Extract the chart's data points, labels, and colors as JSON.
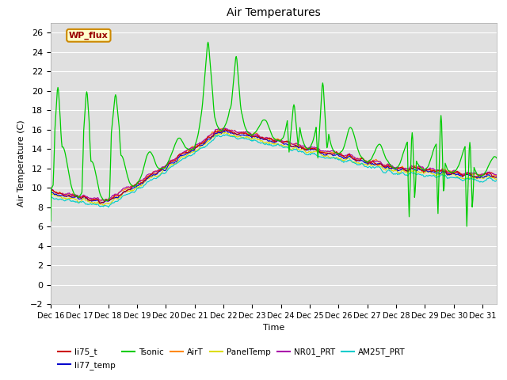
{
  "title": "Air Temperatures",
  "ylabel": "Air Temperature (C)",
  "xlabel": "Time",
  "ylim": [
    -2,
    27
  ],
  "yticks": [
    -2,
    0,
    2,
    4,
    6,
    8,
    10,
    12,
    14,
    16,
    18,
    20,
    22,
    24,
    26
  ],
  "bg_color": "#e0e0e0",
  "series": {
    "li75_t": {
      "color": "#cc0000",
      "lw": 0.8,
      "zorder": 5
    },
    "li77_temp": {
      "color": "#0000cc",
      "lw": 0.8,
      "zorder": 5
    },
    "Tsonic": {
      "color": "#00cc00",
      "lw": 0.9,
      "zorder": 6
    },
    "AirT": {
      "color": "#ff8800",
      "lw": 0.8,
      "zorder": 4
    },
    "PanelTemp": {
      "color": "#dddd00",
      "lw": 0.8,
      "zorder": 3
    },
    "NR01_PRT": {
      "color": "#aa00aa",
      "lw": 0.8,
      "zorder": 4
    },
    "AM25T_PRT": {
      "color": "#00cccc",
      "lw": 0.8,
      "zorder": 4
    }
  },
  "legend_label": "WP_flux",
  "legend_bg": "#ffffcc",
  "legend_border": "#cc8800",
  "legend_text_color": "#990000",
  "n_days": 16,
  "pts_per_day": 48
}
